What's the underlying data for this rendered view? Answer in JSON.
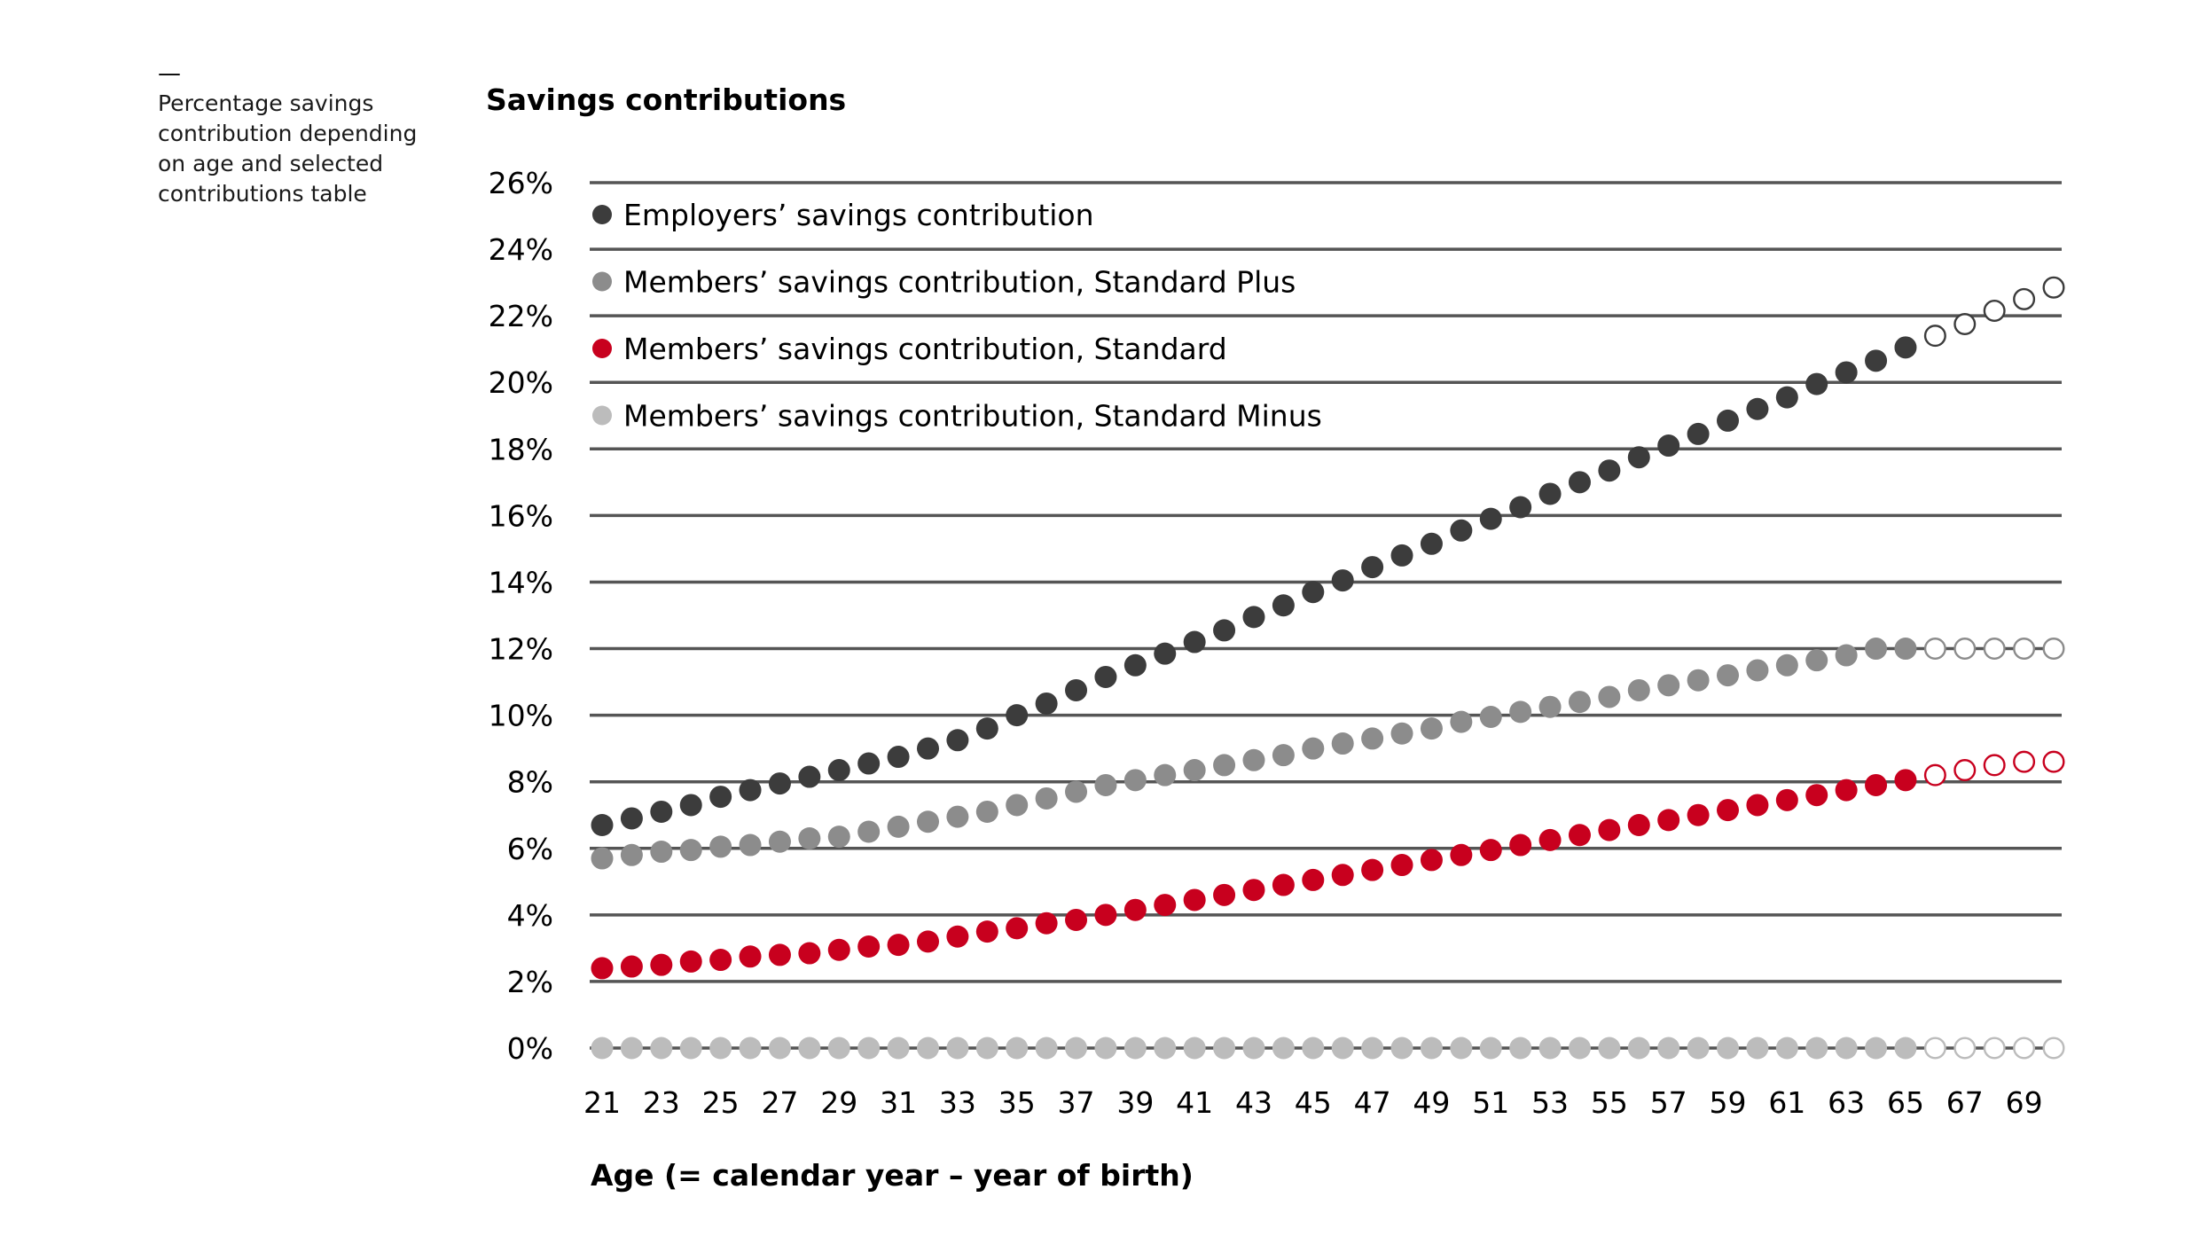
{
  "side_note": {
    "dash": "—",
    "text": "Percentage savings contribution depending on age and selected contributions table"
  },
  "colors": {
    "employer": "#3c3c3c",
    "standard_plus": "#8c8c8c",
    "standard": "#c8001e",
    "standard_minus": "#bcbcbc",
    "gridline": "#555555"
  },
  "chart_data": {
    "type": "scatter",
    "title": "Savings contributions",
    "xlabel": "Age (= calendar year – year of birth)",
    "ylabel": "",
    "xlim": [
      21,
      70
    ],
    "ylim": [
      0,
      26
    ],
    "grid": true,
    "legend_position": "top-left",
    "x_tick_labels": [
      "21",
      "23",
      "25",
      "27",
      "29",
      "31",
      "33",
      "35",
      "37",
      "39",
      "41",
      "43",
      "45",
      "47",
      "49",
      "51",
      "53",
      "55",
      "57",
      "59",
      "61",
      "63",
      "65",
      "67",
      "69"
    ],
    "y_tick_labels": [
      "0%",
      "2%",
      "4%",
      "6%",
      "8%",
      "10%",
      "12%",
      "14%",
      "16%",
      "18%",
      "20%",
      "22%",
      "24%",
      "26%"
    ],
    "x": [
      21,
      22,
      23,
      24,
      25,
      26,
      27,
      28,
      29,
      30,
      31,
      32,
      33,
      34,
      35,
      36,
      37,
      38,
      39,
      40,
      41,
      42,
      43,
      44,
      45,
      46,
      47,
      48,
      49,
      50,
      51,
      52,
      53,
      54,
      55,
      56,
      57,
      58,
      59,
      60,
      61,
      62,
      63,
      64,
      65,
      66,
      67,
      68,
      69,
      70
    ],
    "projected_from_age": 66,
    "series": [
      {
        "name": "Employers’ savings contribution",
        "color": "#3c3c3c",
        "values": [
          6.7,
          6.9,
          7.1,
          7.3,
          7.55,
          7.75,
          7.95,
          8.15,
          8.35,
          8.55,
          8.75,
          9.0,
          9.25,
          9.6,
          10.0,
          10.35,
          10.75,
          11.15,
          11.5,
          11.85,
          12.2,
          12.55,
          12.95,
          13.3,
          13.7,
          14.05,
          14.45,
          14.8,
          15.15,
          15.55,
          15.9,
          16.25,
          16.65,
          17.0,
          17.35,
          17.75,
          18.1,
          18.45,
          18.85,
          19.2,
          19.55,
          19.95,
          20.3,
          20.65,
          21.05,
          21.4,
          21.75,
          22.15,
          22.5,
          22.85
        ]
      },
      {
        "name": "Members’ savings contribution, Standard Plus",
        "color": "#8c8c8c",
        "values": [
          5.7,
          5.8,
          5.9,
          5.95,
          6.05,
          6.1,
          6.2,
          6.3,
          6.35,
          6.5,
          6.65,
          6.8,
          6.95,
          7.1,
          7.3,
          7.5,
          7.7,
          7.9,
          8.05,
          8.2,
          8.35,
          8.5,
          8.65,
          8.8,
          9.0,
          9.15,
          9.3,
          9.45,
          9.6,
          9.8,
          9.95,
          10.1,
          10.25,
          10.4,
          10.55,
          10.75,
          10.9,
          11.05,
          11.2,
          11.35,
          11.5,
          11.65,
          11.8,
          12.0,
          12.0,
          12.0,
          12.0,
          12.0,
          12.0,
          12.0
        ]
      },
      {
        "name": "Members’ savings contribution, Standard",
        "color": "#c8001e",
        "values": [
          2.4,
          2.45,
          2.5,
          2.6,
          2.65,
          2.75,
          2.8,
          2.85,
          2.95,
          3.05,
          3.1,
          3.2,
          3.35,
          3.5,
          3.6,
          3.75,
          3.85,
          4.0,
          4.15,
          4.3,
          4.45,
          4.6,
          4.75,
          4.9,
          5.05,
          5.2,
          5.35,
          5.5,
          5.65,
          5.8,
          5.95,
          6.1,
          6.25,
          6.4,
          6.55,
          6.7,
          6.85,
          7.0,
          7.15,
          7.3,
          7.45,
          7.6,
          7.75,
          7.9,
          8.05,
          8.2,
          8.35,
          8.5,
          8.6,
          8.6
        ]
      },
      {
        "name": "Members’ savings contribution, Standard Minus",
        "color": "#bcbcbc",
        "values": [
          0,
          0,
          0,
          0,
          0,
          0,
          0,
          0,
          0,
          0,
          0,
          0,
          0,
          0,
          0,
          0,
          0,
          0,
          0,
          0,
          0,
          0,
          0,
          0,
          0,
          0,
          0,
          0,
          0,
          0,
          0,
          0,
          0,
          0,
          0,
          0,
          0,
          0,
          0,
          0,
          0,
          0,
          0,
          0,
          0,
          0,
          0,
          0,
          0,
          0
        ]
      }
    ]
  }
}
